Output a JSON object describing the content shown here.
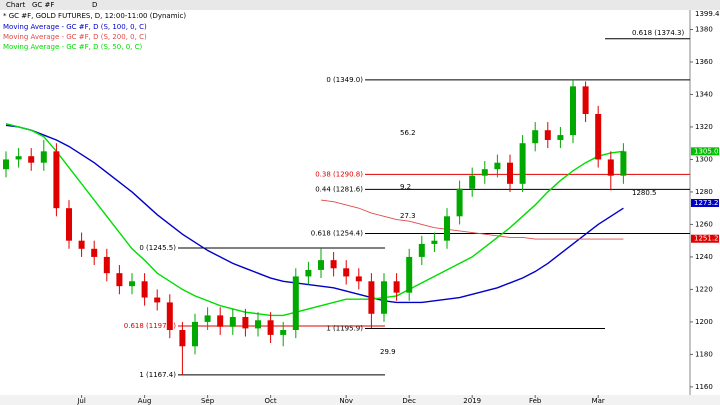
{
  "toolbar": {
    "items": [
      "Chart",
      "GC #F",
      "D"
    ],
    "corner_label": "1399.4"
  },
  "chart_data": {
    "type": "candlestick",
    "title": "* GC #F, GOLD FUTURES, D, 12:00-11:00 (Dynamic)",
    "categories": [
      null,
      null,
      null,
      null,
      null,
      null,
      "Jul",
      null,
      null,
      null,
      null,
      "Aug",
      null,
      null,
      null,
      null,
      "Sep",
      null,
      null,
      null,
      null,
      "Oct",
      null,
      null,
      null,
      null,
      null,
      "Nov",
      null,
      null,
      null,
      null,
      "Dec",
      null,
      null,
      null,
      null,
      "2019",
      null,
      null,
      null,
      null,
      "Feb",
      null,
      null,
      null,
      null,
      "Mar",
      null,
      null
    ],
    "open": [
      1294,
      1300,
      1302,
      1298,
      1305,
      1270,
      1250,
      1245,
      1240,
      1230,
      1222,
      1225,
      1215,
      1212,
      1195,
      1185,
      1200,
      1204,
      1197,
      1203,
      1196,
      1201,
      1192,
      1195,
      1228,
      1232,
      1238,
      1233,
      1228,
      1225,
      1205,
      1225,
      1218,
      1240,
      1248,
      1250,
      1265,
      1282,
      1290,
      1294,
      1298,
      1285,
      1310,
      1318,
      1312,
      1315,
      1345,
      1328,
      1300,
      1290
    ],
    "high": [
      1305,
      1307,
      1307,
      1312,
      1310,
      1275,
      1255,
      1250,
      1245,
      1235,
      1230,
      1230,
      1220,
      1217,
      1200,
      1205,
      1209,
      1209,
      1208,
      1208,
      1206,
      1206,
      1200,
      1233,
      1237,
      1245,
      1243,
      1238,
      1233,
      1230,
      1230,
      1230,
      1245,
      1253,
      1255,
      1270,
      1287,
      1295,
      1299,
      1303,
      1303,
      1315,
      1323,
      1323,
      1320,
      1349,
      1348,
      1333,
      1305,
      1310
    ],
    "low": [
      1289,
      1295,
      1293,
      1293,
      1265,
      1245,
      1240,
      1235,
      1225,
      1217,
      1217,
      1210,
      1207,
      1190,
      1167,
      1180,
      1195,
      1192,
      1192,
      1191,
      1191,
      1187,
      1185,
      1190,
      1223,
      1227,
      1228,
      1223,
      1220,
      1196,
      1200,
      1213,
      1213,
      1235,
      1243,
      1245,
      1260,
      1277,
      1285,
      1289,
      1280,
      1280,
      1305,
      1307,
      1307,
      1310,
      1323,
      1295,
      1281,
      1285
    ],
    "close": [
      1300,
      1302,
      1298,
      1305,
      1270,
      1250,
      1245,
      1240,
      1230,
      1222,
      1225,
      1215,
      1212,
      1195,
      1185,
      1200,
      1204,
      1197,
      1203,
      1196,
      1201,
      1192,
      1195,
      1228,
      1232,
      1238,
      1233,
      1228,
      1225,
      1205,
      1225,
      1218,
      1240,
      1248,
      1250,
      1265,
      1282,
      1290,
      1294,
      1298,
      1285,
      1310,
      1318,
      1312,
      1315,
      1345,
      1328,
      1300,
      1290,
      1305
    ],
    "up_color": "#00a800",
    "down_color": "#e00000",
    "series": [
      {
        "name": "Moving Average - GC #F, D (S, 100, 0, C)",
        "color": "#0000c8",
        "values": [
          1321,
          1320,
          1318,
          1315,
          1312,
          1308,
          1303,
          1298,
          1292,
          1286,
          1280,
          1273,
          1266,
          1260,
          1254,
          1249,
          1244,
          1240,
          1236,
          1233,
          1230,
          1227,
          1225,
          1224,
          1223,
          1222,
          1221,
          1219,
          1217,
          1215,
          1213,
          1212,
          1212,
          1212,
          1213,
          1214,
          1215,
          1217,
          1219,
          1221,
          1224,
          1227,
          1231,
          1236,
          1242,
          1248,
          1254,
          1260,
          1265,
          1270
        ]
      },
      {
        "name": "Moving Average - GC #F, D (S, 200, 0, C)",
        "color": "#e04848",
        "values": [
          null,
          null,
          null,
          null,
          null,
          null,
          null,
          null,
          null,
          null,
          null,
          null,
          null,
          null,
          null,
          null,
          null,
          null,
          null,
          null,
          null,
          null,
          null,
          null,
          null,
          1275,
          1274,
          1272,
          1270,
          1267,
          1265,
          1263,
          1262,
          1260,
          1258,
          1257,
          1256,
          1255,
          1254,
          1253,
          1252,
          1252,
          1251,
          1251,
          1251,
          1251,
          1251,
          1251,
          1251,
          1251
        ]
      },
      {
        "name": "Moving Average - GC #F, D (S, 50, 0, C)",
        "color": "#00dd00",
        "values": [
          1322,
          1320,
          1318,
          1314,
          1305,
          1295,
          1285,
          1275,
          1265,
          1255,
          1245,
          1238,
          1230,
          1225,
          1220,
          1216,
          1213,
          1210,
          1208,
          1206,
          1205,
          1204,
          1204,
          1206,
          1208,
          1210,
          1212,
          1214,
          1214,
          1214,
          1215,
          1216,
          1220,
          1224,
          1228,
          1232,
          1236,
          1240,
          1246,
          1252,
          1258,
          1265,
          1272,
          1280,
          1287,
          1293,
          1298,
          1302,
          1304,
          1305
        ]
      }
    ],
    "ylim": [
      1155,
      1392
    ],
    "yticks": [
      1160,
      1180,
      1200,
      1220,
      1240,
      1260,
      1280,
      1300,
      1320,
      1340,
      1360,
      1380
    ],
    "grid": false,
    "annotations": [
      {
        "label": "0 (1245.5)",
        "value": 1245.5,
        "color": "#000000"
      },
      {
        "label": "0.618 (1197.5)",
        "value": 1197.5,
        "color": "#e00000"
      },
      {
        "label": "1 (1167.4)",
        "value": 1167.4,
        "color": "#000000"
      },
      {
        "label": "0 (1349.0)",
        "value": 1349.0,
        "color": "#000000"
      },
      {
        "label": "0.38 (1290.8)",
        "value": 1290.8,
        "color": "#e00000"
      },
      {
        "label": "0.44 (1281.6)",
        "value": 1281.6,
        "color": "#000000"
      },
      {
        "label": "0.618 (1254.4)",
        "value": 1254.4,
        "color": "#000000"
      },
      {
        "label": "1 (1195.9)",
        "value": 1195.9,
        "color": "#000000"
      },
      {
        "label": "0.618 (1374.3)",
        "value": 1374.3,
        "color": "#000000"
      }
    ],
    "notes": [
      "29.9",
      "56.2",
      "9.2",
      "27.3",
      "1280.5"
    ],
    "price_tags": [
      {
        "value": 1305.0,
        "label": "1305.0",
        "color": "#00c000"
      },
      {
        "value": 1273.2,
        "color": "#0000c8"
      },
      {
        "value": 1251.2,
        "color": "#e00000"
      }
    ]
  }
}
